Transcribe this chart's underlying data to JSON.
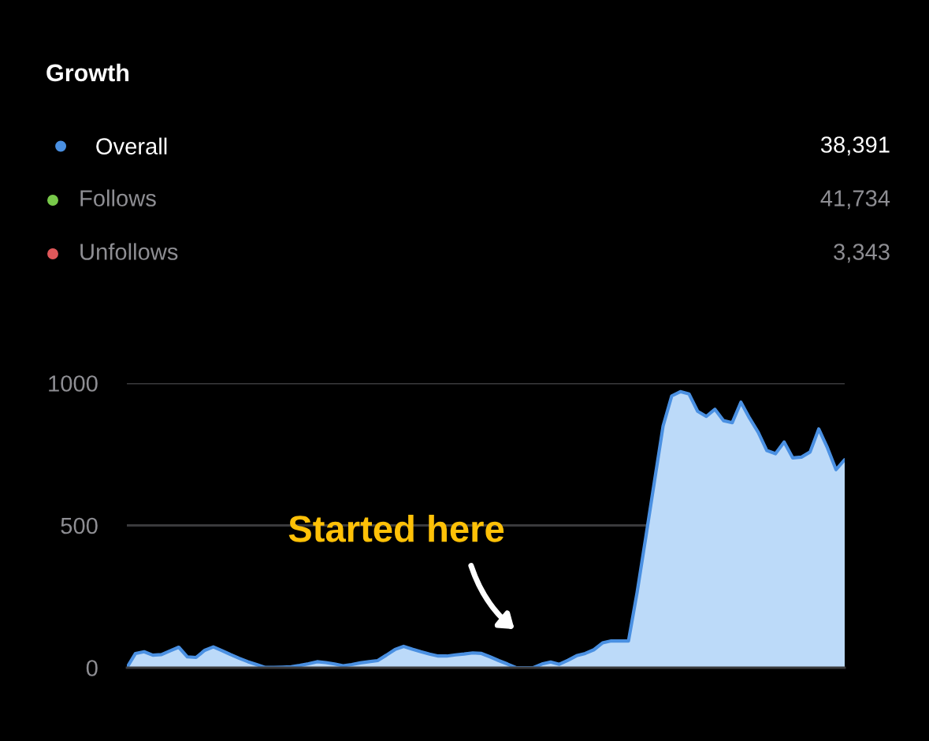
{
  "chart_data": {
    "type": "area",
    "title": "Growth",
    "categories": [
      null,
      null,
      null,
      null,
      null,
      null,
      null,
      null,
      null,
      null,
      null,
      null,
      null,
      null,
      null,
      null,
      null,
      null,
      null,
      null,
      null,
      null,
      null,
      null,
      null,
      null,
      null,
      null,
      null,
      null,
      null,
      null,
      null,
      null,
      null,
      null,
      null,
      null,
      null,
      null,
      null,
      null,
      null,
      null,
      null,
      null,
      null,
      null,
      null,
      null,
      null,
      null,
      null,
      null,
      null,
      null,
      null,
      null,
      null,
      null,
      null,
      null,
      null,
      null,
      null,
      null,
      null,
      null,
      null,
      null,
      null,
      null,
      null,
      null,
      null,
      null,
      null,
      null,
      null,
      null,
      null,
      null,
      null,
      null
    ],
    "series": [
      {
        "name": "Overall",
        "color": "#4a90e2",
        "values": [
          0,
          50,
          56,
          44,
          46,
          59,
          72,
          38,
          36,
          61,
          73,
          60,
          46,
          33,
          21,
          11,
          1,
          1,
          2,
          3,
          8,
          14,
          21,
          18,
          13,
          7,
          11,
          17,
          21,
          25,
          44,
          64,
          75,
          65,
          56,
          48,
          41,
          41,
          45,
          48,
          52,
          50,
          38,
          25,
          13,
          0,
          0,
          0,
          13,
          20,
          12,
          26,
          42,
          50,
          63,
          87,
          94,
          94,
          94,
          265,
          458,
          654,
          849,
          955,
          970,
          962,
          901,
          883,
          908,
          868,
          861,
          933,
          877,
          827,
          763,
          752,
          793,
          737,
          740,
          758,
          839,
          773,
          696,
          731
        ]
      }
    ],
    "ylim": [
      0,
      1000
    ],
    "yticks": [
      0,
      500,
      1000
    ],
    "grid": "y",
    "legend": "top left",
    "marker": "none",
    "annotations": [
      "38,391",
      "Follows",
      "41,734",
      "Unfollows",
      "3,343",
      "Started here"
    ]
  }
}
